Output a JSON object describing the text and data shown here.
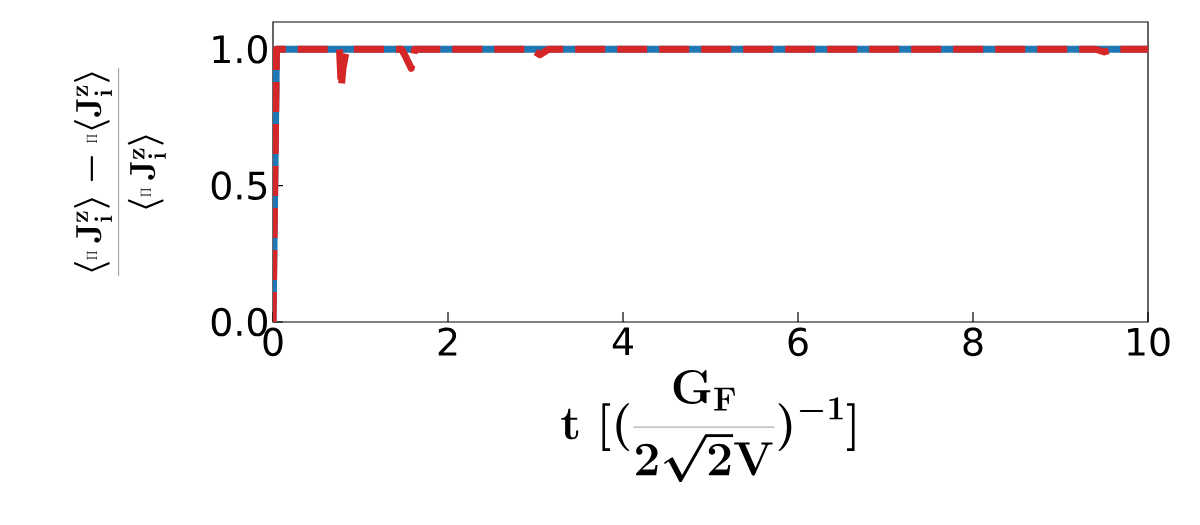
{
  "chart_data": {
    "type": "line",
    "xlabel": "\\mathbf{t\\ [(\\frac{G_F}{2\\sqrt{2}V})^{-1}]}",
    "ylabel": "\\frac{\\langle\\prod \\mathbf{J}_{\\mathbf{i}}^{\\mathbf{z}}\\rangle - \\prod\\langle \\mathbf{J}_{\\mathbf{i}}^{\\mathbf{z}}\\rangle}{\\langle\\prod \\mathbf{J}_{\\mathbf{i}}^{\\mathbf{z}}\\rangle}",
    "xlim": [
      0,
      10
    ],
    "ylim": [
      0,
      1.1
    ],
    "xticks": [
      0,
      2,
      4,
      6,
      8,
      10
    ],
    "yticks": [
      {
        "value": 0,
        "label": "0.0"
      },
      {
        "value": 0.5,
        "label": "0.5"
      },
      {
        "value": 1,
        "label": "1.0"
      }
    ],
    "series": [
      {
        "color": "#1f77b4",
        "line_style": "solid",
        "x": [
          0,
          0.04,
          10
        ],
        "values": [
          0,
          1.0,
          1.0
        ]
      },
      {
        "color": "#d62728",
        "line_style": "dashed",
        "x": [
          0,
          0.04,
          0.76,
          0.78,
          0.8,
          0.84,
          1.47,
          1.52,
          1.58,
          1.62,
          2.95,
          3.05,
          3.15,
          9.4,
          9.5,
          9.6,
          10
        ],
        "values": [
          0,
          1.0,
          1.0,
          0.86,
          0.93,
          1.0,
          1.0,
          0.97,
          0.93,
          1.0,
          1.0,
          0.98,
          1.0,
          1.0,
          0.99,
          1.0,
          1.0
        ]
      }
    ]
  }
}
